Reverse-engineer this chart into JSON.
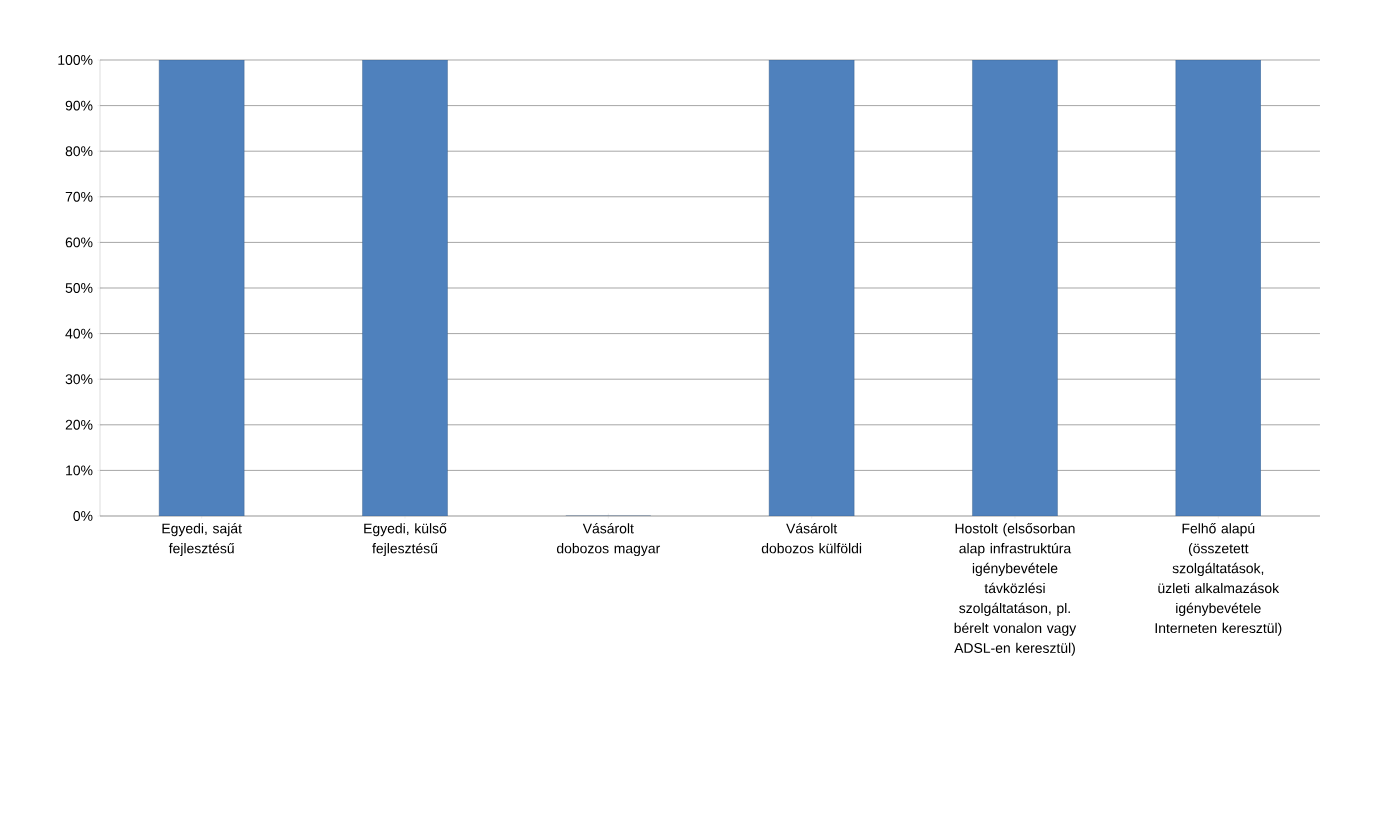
{
  "chart_data": {
    "type": "bar",
    "categories": [
      "Egyedi, saját fejlesztésű",
      "Egyedi, külső fejlesztésű",
      "Vásárolt dobozos magyar",
      "Vásárolt dobozos külföldi",
      "Hostolt (elsősorban alap infrastruktúra igénybevétele távközlési szolgáltatáson, pl. bérelt vonalon vagy ADSL-en keresztül)",
      "Felhő alapú (összetett szolgáltatások, üzleti alkalmazások igénybevétele Interneten keresztül)"
    ],
    "values": [
      100,
      100,
      0,
      100,
      100,
      100
    ],
    "color": "#4f81bd",
    "ylim": [
      0,
      100
    ],
    "yticks": [
      {
        "value": 0,
        "label": "0%"
      },
      {
        "value": 10,
        "label": "10%"
      },
      {
        "value": 20,
        "label": "20%"
      },
      {
        "value": 30,
        "label": "30%"
      },
      {
        "value": 40,
        "label": "40%"
      },
      {
        "value": 50,
        "label": "50%"
      },
      {
        "value": 60,
        "label": "60%"
      },
      {
        "value": 70,
        "label": "70%"
      },
      {
        "value": 80,
        "label": "80%"
      },
      {
        "value": 90,
        "label": "90%"
      },
      {
        "value": 100,
        "label": "100%"
      }
    ],
    "grid": "y"
  }
}
